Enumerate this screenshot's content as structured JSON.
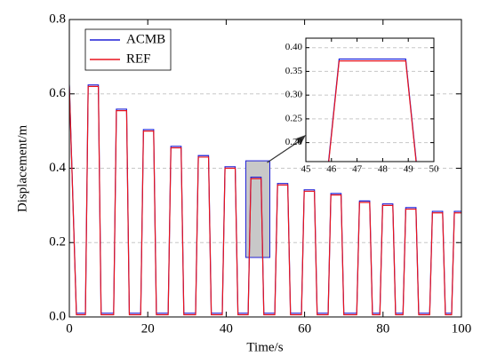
{
  "chart_data": [
    {
      "type": "line",
      "x_label": "Time/s",
      "y_label": "Displacement/m",
      "xlim": [
        0,
        100
      ],
      "xticks": [
        0,
        20,
        40,
        60,
        80,
        100
      ],
      "ylim": [
        0,
        0.8
      ],
      "yticks": [
        {
          "value": 0,
          "label": "0.0"
        },
        0.2,
        0.4,
        0.6,
        0.8
      ],
      "grid": true,
      "legend": "upper left",
      "x": [
        0,
        1.8,
        4.1,
        4.8,
        7.4,
        8.1,
        11.3,
        12.0,
        14.6,
        15.3,
        18.2,
        18.9,
        21.5,
        22.2,
        25.2,
        25.9,
        28.5,
        29.2,
        32.2,
        32.9,
        35.5,
        36.2,
        39.0,
        39.7,
        42.3,
        43.0,
        45.6,
        46.3,
        48.9,
        49.6,
        52.4,
        53.1,
        55.7,
        56.4,
        59.2,
        59.9,
        62.5,
        63.2,
        66.0,
        66.7,
        69.3,
        70.0,
        73.3,
        74.0,
        76.6,
        77.3,
        79.2,
        79.9,
        82.5,
        83.2,
        85.1,
        85.8,
        88.4,
        89.1,
        91.9,
        92.6,
        95.2,
        95.9,
        97.5,
        98.2,
        100
      ],
      "series": [
        {
          "name": "ACMB",
          "color": "#1f1fd6",
          "values": [
            0.624,
            0.01,
            0.01,
            0.624,
            0.624,
            0.01,
            0.01,
            0.559,
            0.559,
            0.01,
            0.01,
            0.504,
            0.504,
            0.01,
            0.01,
            0.459,
            0.459,
            0.01,
            0.01,
            0.434,
            0.434,
            0.01,
            0.01,
            0.404,
            0.404,
            0.01,
            0.01,
            0.376,
            0.376,
            0.01,
            0.01,
            0.359,
            0.359,
            0.01,
            0.01,
            0.342,
            0.342,
            0.01,
            0.01,
            0.332,
            0.332,
            0.01,
            0.01,
            0.312,
            0.312,
            0.01,
            0.01,
            0.304,
            0.304,
            0.01,
            0.01,
            0.294,
            0.294,
            0.01,
            0.01,
            0.284,
            0.284,
            0.01,
            0.01,
            0.284,
            0.284
          ]
        },
        {
          "name": "REF",
          "color": "#e8141e",
          "values": [
            0.62,
            0.006,
            0.006,
            0.62,
            0.62,
            0.006,
            0.006,
            0.555,
            0.555,
            0.006,
            0.006,
            0.5,
            0.5,
            0.006,
            0.006,
            0.455,
            0.455,
            0.006,
            0.006,
            0.43,
            0.43,
            0.006,
            0.006,
            0.4,
            0.4,
            0.006,
            0.006,
            0.372,
            0.372,
            0.006,
            0.006,
            0.355,
            0.355,
            0.006,
            0.006,
            0.338,
            0.338,
            0.006,
            0.006,
            0.328,
            0.328,
            0.006,
            0.006,
            0.308,
            0.308,
            0.006,
            0.006,
            0.3,
            0.3,
            0.006,
            0.006,
            0.29,
            0.29,
            0.006,
            0.006,
            0.28,
            0.28,
            0.006,
            0.006,
            0.28,
            0.28
          ]
        }
      ]
    },
    {
      "type": "inset",
      "xlim": [
        45,
        50
      ],
      "xticks": [
        45,
        46,
        47,
        48,
        49,
        50
      ],
      "ylim": [
        0.16,
        0.42
      ],
      "yticks": [
        {
          "value": 0.2,
          "label": "0.20"
        },
        {
          "value": 0.25,
          "label": "0.25"
        },
        {
          "value": 0.3,
          "label": "0.30"
        },
        {
          "value": 0.35,
          "label": "0.35"
        },
        {
          "value": 0.4,
          "label": "0.40"
        }
      ],
      "grid": true
    }
  ]
}
